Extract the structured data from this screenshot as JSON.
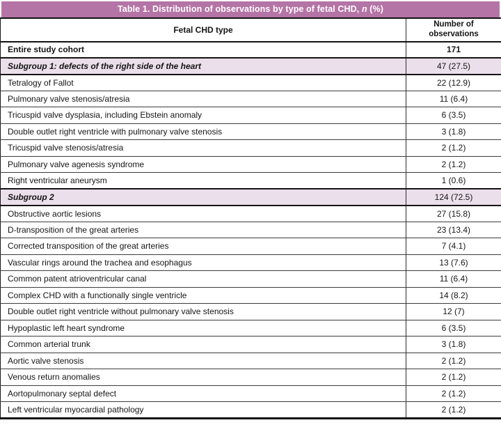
{
  "title": {
    "prefix": "Table 1. Distribution of observations by type of fetal CHD, ",
    "italic": "n",
    "suffix": " (%)"
  },
  "colors": {
    "title_bar": "#b474a5",
    "subgroup_row_bg": "#ebdfeb",
    "title_text": "#ffffff"
  },
  "table": {
    "headers": [
      "Fetal CHD type",
      "Number of observations"
    ],
    "rows": [
      {
        "label": "Entire study cohort",
        "value": "171",
        "style": "cohort"
      },
      {
        "label": "Subgroup 1: defects of the right side of the heart",
        "value": "47 (27.5)",
        "style": "subgroup"
      },
      {
        "label": "Tetralogy of Fallot",
        "value": "22 (12.9)",
        "style": "normal"
      },
      {
        "label": "Pulmonary valve stenosis/atresia",
        "value": "11 (6.4)",
        "style": "normal"
      },
      {
        "label": "Tricuspid valve dysplasia, including Ebstein anomaly",
        "value": "6 (3.5)",
        "style": "normal"
      },
      {
        "label": "Double outlet right ventricle with pulmonary valve stenosis",
        "value": "3 (1.8)",
        "style": "normal"
      },
      {
        "label": "Tricuspid valve stenosis/atresia",
        "value": "2 (1.2)",
        "style": "normal"
      },
      {
        "label": "Pulmonary valve agenesis syndrome",
        "value": "2 (1.2)",
        "style": "normal"
      },
      {
        "label": "Right ventricular aneurysm",
        "value": "1 (0.6)",
        "style": "normal"
      },
      {
        "label": "Subgroup 2",
        "value": "124 (72.5)",
        "style": "subgroup"
      },
      {
        "label": "Obstructive aortic lesions",
        "value": "27 (15.8)",
        "style": "normal"
      },
      {
        "label": "D-transposition of the great arteries",
        "value": "23 (13.4)",
        "style": "normal"
      },
      {
        "label": "Corrected transposition of the great arteries",
        "value": "7 (4.1)",
        "style": "normal"
      },
      {
        "label": "Vascular rings around the trachea and esophagus",
        "value": "13 (7.6)",
        "style": "normal"
      },
      {
        "label": "Common patent atrioventricular canal",
        "value": "11 (6.4)",
        "style": "normal"
      },
      {
        "label": "Complex CHD with a functionally single ventricle",
        "value": "14 (8.2)",
        "style": "normal"
      },
      {
        "label": "Double outlet right ventricle without pulmonary valve stenosis",
        "value": "12 (7)",
        "style": "normal"
      },
      {
        "label": "Hypoplastic left heart syndrome",
        "value": "6 (3.5)",
        "style": "normal"
      },
      {
        "label": "Common arterial trunk",
        "value": "3 (1.8)",
        "style": "normal"
      },
      {
        "label": "Aortic valve stenosis",
        "value": "2 (1.2)",
        "style": "normal"
      },
      {
        "label": "Venous return anomalies",
        "value": "2 (1.2)",
        "style": "normal"
      },
      {
        "label": "Aortopulmonary septal defect",
        "value": "2 (1.2)",
        "style": "normal"
      },
      {
        "label": "Left ventricular myocardial pathology",
        "value": "2 (1.2)",
        "style": "normal"
      }
    ]
  }
}
